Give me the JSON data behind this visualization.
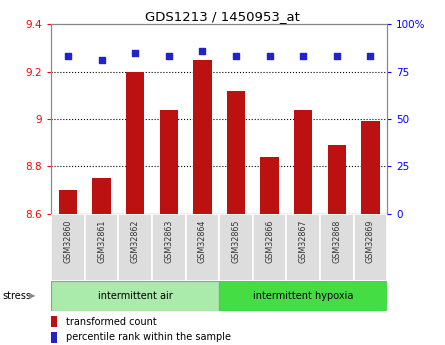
{
  "title": "GDS1213 / 1450953_at",
  "samples": [
    "GSM32860",
    "GSM32861",
    "GSM32862",
    "GSM32863",
    "GSM32864",
    "GSM32865",
    "GSM32866",
    "GSM32867",
    "GSM32868",
    "GSM32869"
  ],
  "bar_values": [
    8.7,
    8.75,
    9.2,
    9.04,
    9.25,
    9.12,
    8.84,
    9.04,
    8.89,
    8.99
  ],
  "percentile_values": [
    83,
    81,
    85,
    83,
    86,
    83,
    83,
    83,
    83,
    83
  ],
  "bar_color": "#BB1111",
  "dot_color": "#2222CC",
  "ymin": 8.6,
  "ymax": 9.4,
  "yticks_left": [
    8.6,
    8.8,
    9.0,
    9.2,
    9.4
  ],
  "ytick_labels_left": [
    "8.6",
    "8.8",
    "9",
    "9.2",
    "9.4"
  ],
  "y2min": 0,
  "y2max": 100,
  "y2ticks": [
    0,
    25,
    50,
    75,
    100
  ],
  "y2tick_labels": [
    "0",
    "25",
    "50",
    "75",
    "100%"
  ],
  "group1_label": "intermittent air",
  "group2_label": "intermittent hypoxia",
  "group1_count": 5,
  "group2_count": 5,
  "stress_label": "stress",
  "legend_bar_label": "transformed count",
  "legend_dot_label": "percentile rank within the sample",
  "group1_color": "#AAEAAA",
  "group2_color": "#44DD44",
  "bar_width": 0.55,
  "plot_bg_color": "#FFFFFF"
}
